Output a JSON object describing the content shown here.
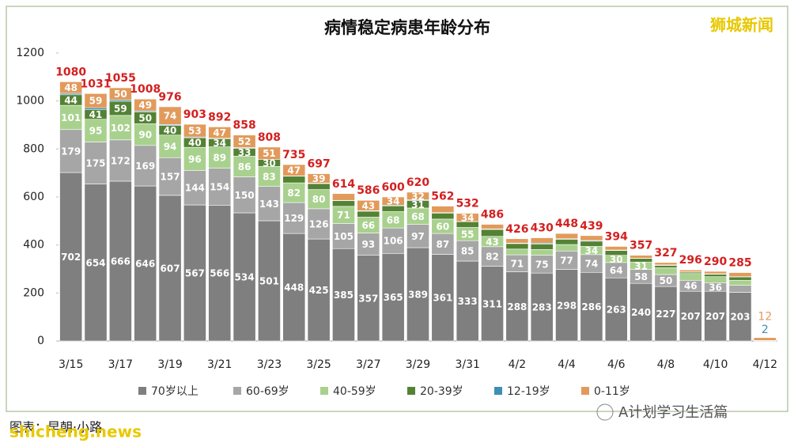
{
  "chart_data": {
    "type": "stacked-bar",
    "title": "病情稳定病患年龄分布",
    "watermark": "狮城新闻",
    "source": "图表：早朝·小路",
    "site": "shicheng.news",
    "account": "A计划学习生活篇",
    "categories": [
      "3/15",
      null,
      "3/17",
      null,
      "3/19",
      null,
      "3/21",
      null,
      "3/23",
      null,
      "3/25",
      null,
      "3/27",
      null,
      "3/29",
      null,
      "3/31",
      null,
      "4/2",
      null,
      "4/4",
      null,
      "4/6",
      null,
      "4/8",
      null,
      "4/10",
      null,
      "4/12"
    ],
    "totals": [
      1080,
      1031,
      1055,
      1008,
      976,
      903,
      892,
      858,
      808,
      735,
      697,
      614,
      586,
      600,
      620,
      562,
      532,
      486,
      426,
      430,
      448,
      439,
      394,
      357,
      327,
      296,
      290,
      285,
      null
    ],
    "series": [
      {
        "name": "70岁以上",
        "color": "#7f7f7f",
        "values": [
          702,
          654,
          666,
          646,
          607,
          567,
          566,
          534,
          501,
          448,
          425,
          385,
          357,
          365,
          389,
          361,
          333,
          311,
          288,
          283,
          298,
          286,
          263,
          240,
          227,
          207,
          207,
          203,
          null
        ]
      },
      {
        "name": "60-69岁",
        "color": "#a6a6a6",
        "values": [
          179,
          175,
          172,
          169,
          157,
          144,
          154,
          150,
          143,
          129,
          126,
          105,
          93,
          106,
          97,
          87,
          85,
          82,
          71,
          75,
          77,
          74,
          64,
          58,
          50,
          46,
          36,
          29,
          null
        ]
      },
      {
        "name": "40-59岁",
        "color": "#a9d18e",
        "values": [
          101,
          95,
          102,
          90,
          94,
          96,
          89,
          86,
          83,
          82,
          80,
          71,
          66,
          68,
          68,
          60,
          55,
          43,
          24,
          23,
          27,
          34,
          30,
          31,
          28,
          28,
          25,
          21,
          null
        ]
      },
      {
        "name": "20-39岁",
        "color": "#548235",
        "values": [
          44,
          41,
          59,
          50,
          40,
          40,
          34,
          33,
          30,
          28,
          25,
          24,
          25,
          24,
          31,
          25,
          24,
          29,
          23,
          23,
          22,
          22,
          20,
          15,
          10,
          6,
          10,
          14,
          null
        ]
      },
      {
        "name": "12-19岁",
        "color": "#3d8fb4",
        "values": [
          6,
          7,
          6,
          4,
          4,
          3,
          2,
          3,
          0,
          1,
          2,
          1,
          2,
          3,
          3,
          2,
          1,
          2,
          2,
          4,
          2,
          3,
          2,
          1,
          2,
          1,
          2,
          1,
          2
        ]
      },
      {
        "name": "0-11岁",
        "color": "#e29a5b",
        "values": [
          48,
          59,
          50,
          49,
          74,
          53,
          47,
          52,
          51,
          47,
          39,
          28,
          43,
          34,
          32,
          27,
          34,
          19,
          18,
          22,
          22,
          20,
          15,
          12,
          10,
          8,
          10,
          17,
          12
        ]
      }
    ],
    "total_color": "#d42020",
    "ylim": [
      0,
      1200
    ],
    "yticks": [
      0,
      200,
      400,
      600,
      800,
      1000,
      1200
    ]
  }
}
